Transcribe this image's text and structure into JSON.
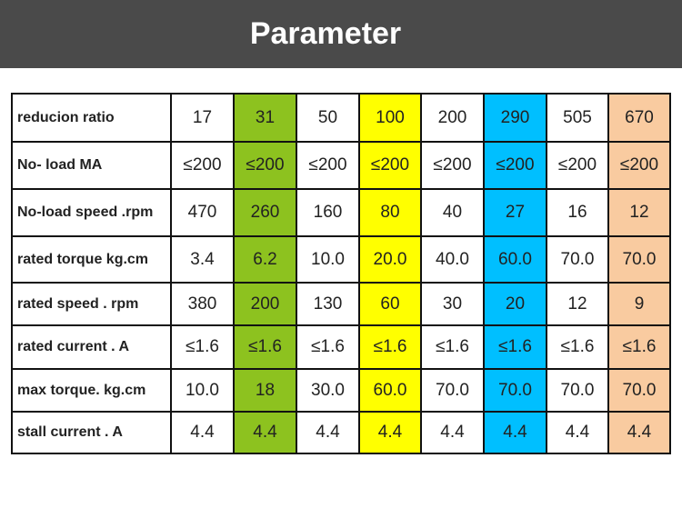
{
  "header": {
    "title": "Parameter"
  },
  "table": {
    "rows": [
      [
        "reducion ratio",
        "17",
        "31",
        "50",
        "100",
        "200",
        "290",
        "505",
        "670"
      ],
      [
        "No- load MA",
        "≤200",
        "≤200",
        "≤200",
        "≤200",
        "≤200",
        "≤200",
        "≤200",
        "≤200"
      ],
      [
        "No-load speed .rpm",
        "470",
        "260",
        "160",
        "80",
        "40",
        "27",
        "16",
        "12"
      ],
      [
        "rated torque kg.cm",
        "3.4",
        "6.2",
        "10.0",
        "20.0",
        "40.0",
        "60.0",
        "70.0",
        "70.0"
      ],
      [
        "rated speed . rpm",
        "380",
        "200",
        "130",
        "60",
        "30",
        "20",
        "12",
        "9"
      ],
      [
        "rated current . A",
        "≤1.6",
        "≤1.6",
        "≤1.6",
        "≤1.6",
        "≤1.6",
        "≤1.6",
        "≤1.6",
        "≤1.6"
      ],
      [
        "max torque. kg.cm",
        "10.0",
        "18",
        "30.0",
        "60.0",
        "70.0",
        "70.0",
        "70.0",
        "70.0"
      ],
      [
        "stall current . A",
        "4.4",
        "4.4",
        "4.4",
        "4.4",
        "4.4",
        "4.4",
        "4.4",
        "4.4"
      ]
    ]
  }
}
